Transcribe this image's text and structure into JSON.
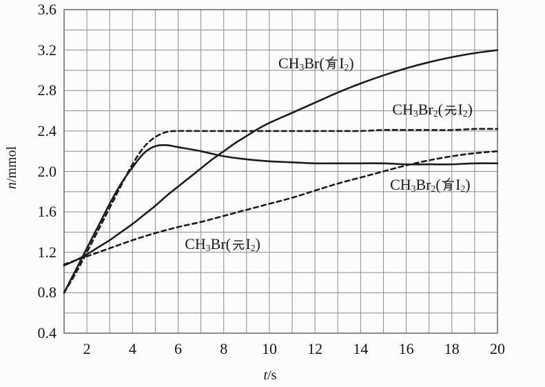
{
  "figure": {
    "background": "#fcfcfc",
    "grid_color": "#8a8a8a",
    "border_color": "#6f6f6f",
    "curve_color": "#1b1b1b",
    "text_color": "#161616"
  },
  "chart_data": {
    "type": "line",
    "title": "",
    "xlabel": "*t*/s",
    "ylabel": "*n*/mmol",
    "xlim": [
      1,
      20
    ],
    "ylim": [
      0.4,
      3.6
    ],
    "x_tick_values": [
      2,
      4,
      6,
      8,
      10,
      12,
      14,
      16,
      18,
      20
    ],
    "x_tick_labels": [
      "2",
      "4",
      "6",
      "8",
      "10",
      "12",
      "14",
      "16",
      "18",
      "20"
    ],
    "y_tick_values": [
      0.4,
      0.8,
      1.2,
      1.6,
      2.0,
      2.4,
      2.8,
      3.2,
      3.6
    ],
    "y_tick_labels": [
      "0.4",
      "0.8",
      "1.2",
      "1.6",
      "2.0",
      "2.4",
      "2.8",
      "3.2",
      "3.6"
    ],
    "x_minor_step": 1,
    "y_minor_step": 0.2,
    "grid": true,
    "legend_position": "inline curve annotations",
    "series": [
      {
        "label": "CH₃Br(有I₂)",
        "label_rich": "CH{3}Br(有I{2})",
        "line": "solid",
        "x": [
          1,
          1.5,
          2,
          2.5,
          3,
          3.5,
          4,
          4.5,
          5,
          5.5,
          6,
          6.5,
          7,
          7.5,
          8,
          8.5,
          9,
          9.5,
          10,
          11,
          12,
          13,
          14,
          15,
          16,
          17,
          18,
          19,
          20
        ],
        "y": [
          1.07,
          1.12,
          1.18,
          1.25,
          1.32,
          1.4,
          1.48,
          1.57,
          1.66,
          1.76,
          1.85,
          1.94,
          2.03,
          2.12,
          2.2,
          2.28,
          2.35,
          2.42,
          2.48,
          2.58,
          2.68,
          2.78,
          2.87,
          2.95,
          3.02,
          3.08,
          3.13,
          3.17,
          3.2
        ]
      },
      {
        "label": "CH₃Br₂(无I₂)",
        "label_rich": "CH{3}Br{2}(无I{2})",
        "line": "dashed",
        "x": [
          1,
          1.5,
          2,
          2.5,
          3,
          3.5,
          4,
          4.5,
          5,
          5.5,
          6,
          7,
          8,
          9,
          10,
          11,
          12,
          13,
          14,
          15,
          16,
          17,
          18,
          19,
          20
        ],
        "y": [
          0.8,
          0.99,
          1.2,
          1.42,
          1.64,
          1.86,
          2.07,
          2.24,
          2.34,
          2.39,
          2.4,
          2.4,
          2.4,
          2.4,
          2.4,
          2.4,
          2.4,
          2.4,
          2.4,
          2.41,
          2.41,
          2.41,
          2.41,
          2.42,
          2.42
        ]
      },
      {
        "label": "CH₃Br₂(有I₂)",
        "label_rich": "CH{3}Br{2}(有I{2})",
        "line": "solid",
        "x": [
          1,
          1.5,
          2,
          2.5,
          3,
          3.5,
          4,
          4.5,
          5,
          5.5,
          6,
          7,
          8,
          9,
          10,
          11,
          12,
          13,
          14,
          15,
          16,
          17,
          18,
          19,
          20
        ],
        "y": [
          0.8,
          1.02,
          1.24,
          1.46,
          1.68,
          1.88,
          2.04,
          2.18,
          2.25,
          2.26,
          2.24,
          2.2,
          2.15,
          2.12,
          2.1,
          2.09,
          2.08,
          2.08,
          2.08,
          2.08,
          2.07,
          2.07,
          2.07,
          2.08,
          2.08
        ]
      },
      {
        "label": "CH₃Br(无I₂)",
        "label_rich": "CH{3}Br(无I{2})",
        "line": "dashed",
        "x": [
          1,
          2,
          2.5,
          3,
          4,
          5,
          6,
          7,
          8,
          9,
          10,
          11,
          12,
          13,
          14,
          15,
          16,
          17,
          18,
          19,
          20
        ],
        "y": [
          1.08,
          1.16,
          1.2,
          1.24,
          1.32,
          1.39,
          1.45,
          1.5,
          1.56,
          1.62,
          1.68,
          1.74,
          1.81,
          1.88,
          1.94,
          2.0,
          2.06,
          2.11,
          2.15,
          2.18,
          2.2
        ]
      }
    ],
    "annotations": [
      {
        "text_rich": "CH{3}Br(有I{2})",
        "text": "CH₃Br(有I₂)",
        "t": 12.05,
        "n": 3.07
      },
      {
        "text_rich": "CH{3}Br{2}(无I{2})",
        "text": "CH₃Br₂(无I₂)",
        "t": 17.15,
        "n": 2.61
      },
      {
        "text_rich": "CH{3}Br{2}(有I{2})",
        "text": "CH₃Br₂(有I₂)",
        "t": 17.05,
        "n": 1.87
      },
      {
        "text_rich": "CH{3}Br(无I{2})",
        "text": "CH₃Br(无I₂)",
        "t": 7.95,
        "n": 1.28
      }
    ]
  }
}
